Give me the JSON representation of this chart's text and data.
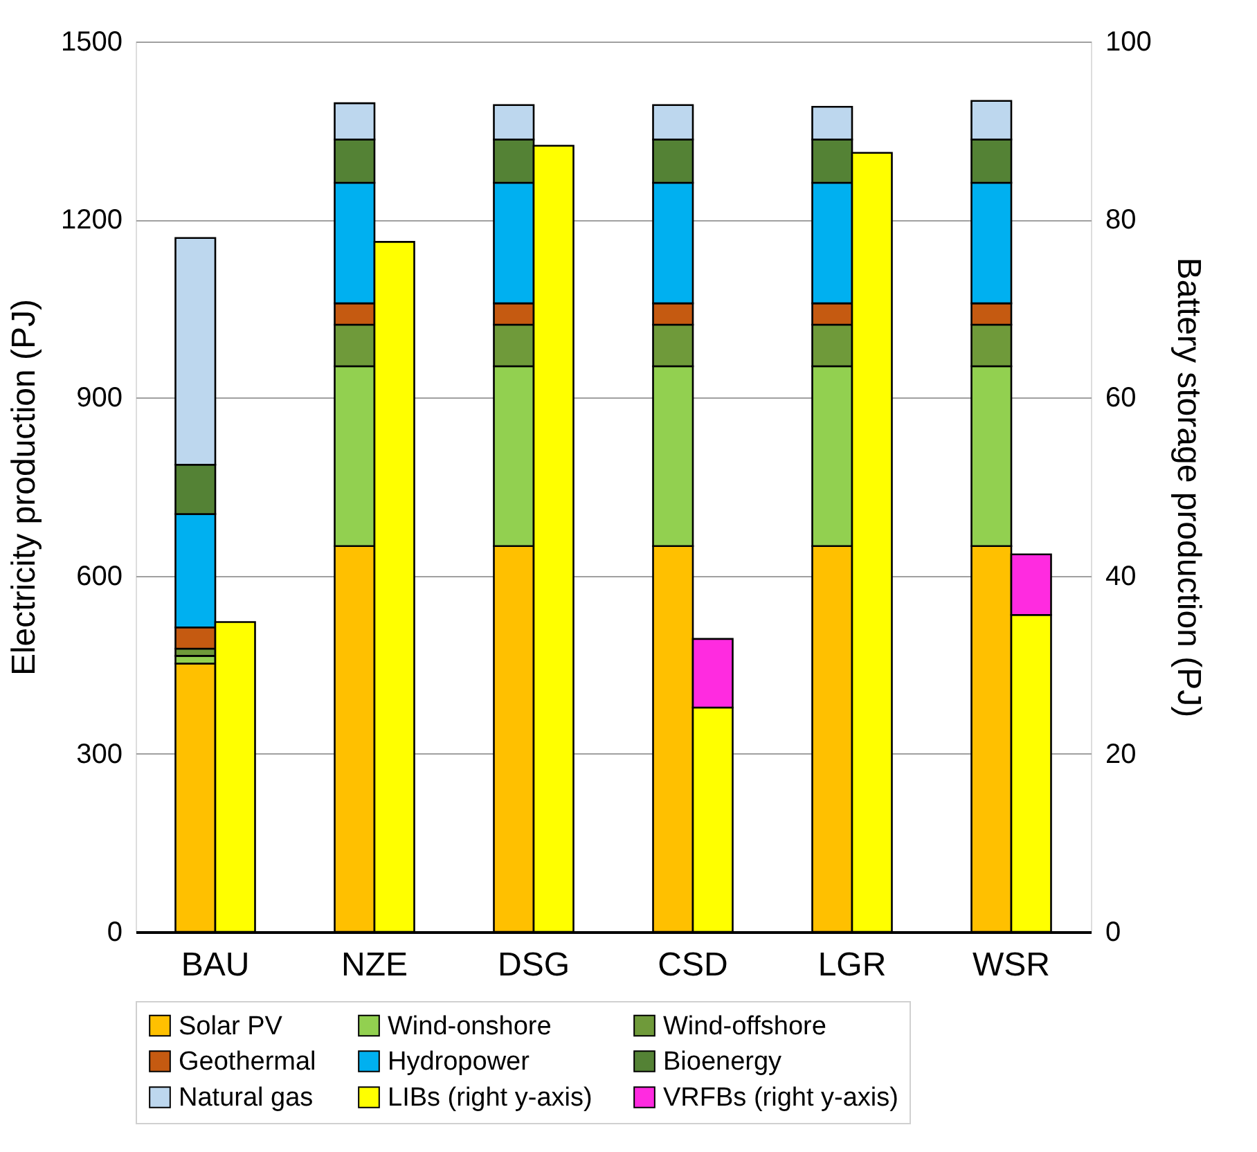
{
  "chart_data": {
    "type": "bar",
    "stacked": true,
    "ylabel": "Electricity production (PJ)",
    "y2label": "Battery storage production (PJ)",
    "categories": [
      "BAU",
      "NZE",
      "DSG",
      "CSD",
      "LGR",
      "WSR"
    ],
    "series": [
      {
        "name": "Solar PV",
        "color": "#ffc000",
        "values": [
          452,
          650,
          650,
          650,
          650,
          650
        ]
      },
      {
        "name": "Wind-onshore",
        "color": "#92d050",
        "values": [
          13,
          303,
          303,
          303,
          303,
          303
        ]
      },
      {
        "name": "Wind-offshore",
        "color": "#6f9a3a",
        "values": [
          12,
          70,
          70,
          70,
          70,
          70
        ]
      },
      {
        "name": "Geothermal",
        "color": "#c55a11",
        "values": [
          36,
          36,
          36,
          36,
          36,
          36
        ]
      },
      {
        "name": "Hydropower",
        "color": "#00b0f0",
        "values": [
          191,
          203,
          203,
          203,
          203,
          203
        ]
      },
      {
        "name": "Bioenergy",
        "color": "#548235",
        "values": [
          83,
          73,
          73,
          73,
          73,
          73
        ]
      },
      {
        "name": "Natural gas",
        "color": "#bdd7ee",
        "values": [
          382,
          61,
          58,
          58,
          55,
          65
        ]
      },
      {
        "name": "LIBs (right y-axis)",
        "color": "#ffff00",
        "axis": "y2",
        "values": [
          34.8,
          77.5,
          88.3,
          25.2,
          87.5,
          35.6
        ]
      },
      {
        "name": "VRFBs (right y-axis)",
        "color": "#ff2be0",
        "axis": "y2",
        "values": [
          null,
          null,
          null,
          7.7,
          null,
          6.8
        ]
      }
    ],
    "ylim": [
      0,
      1500
    ],
    "yticks": [
      0,
      300,
      600,
      900,
      1200,
      1500
    ],
    "y2lim": [
      0,
      100
    ],
    "y2ticks": [
      0,
      20,
      40,
      60,
      80,
      100
    ],
    "grid": "y",
    "legend": "bottom"
  }
}
